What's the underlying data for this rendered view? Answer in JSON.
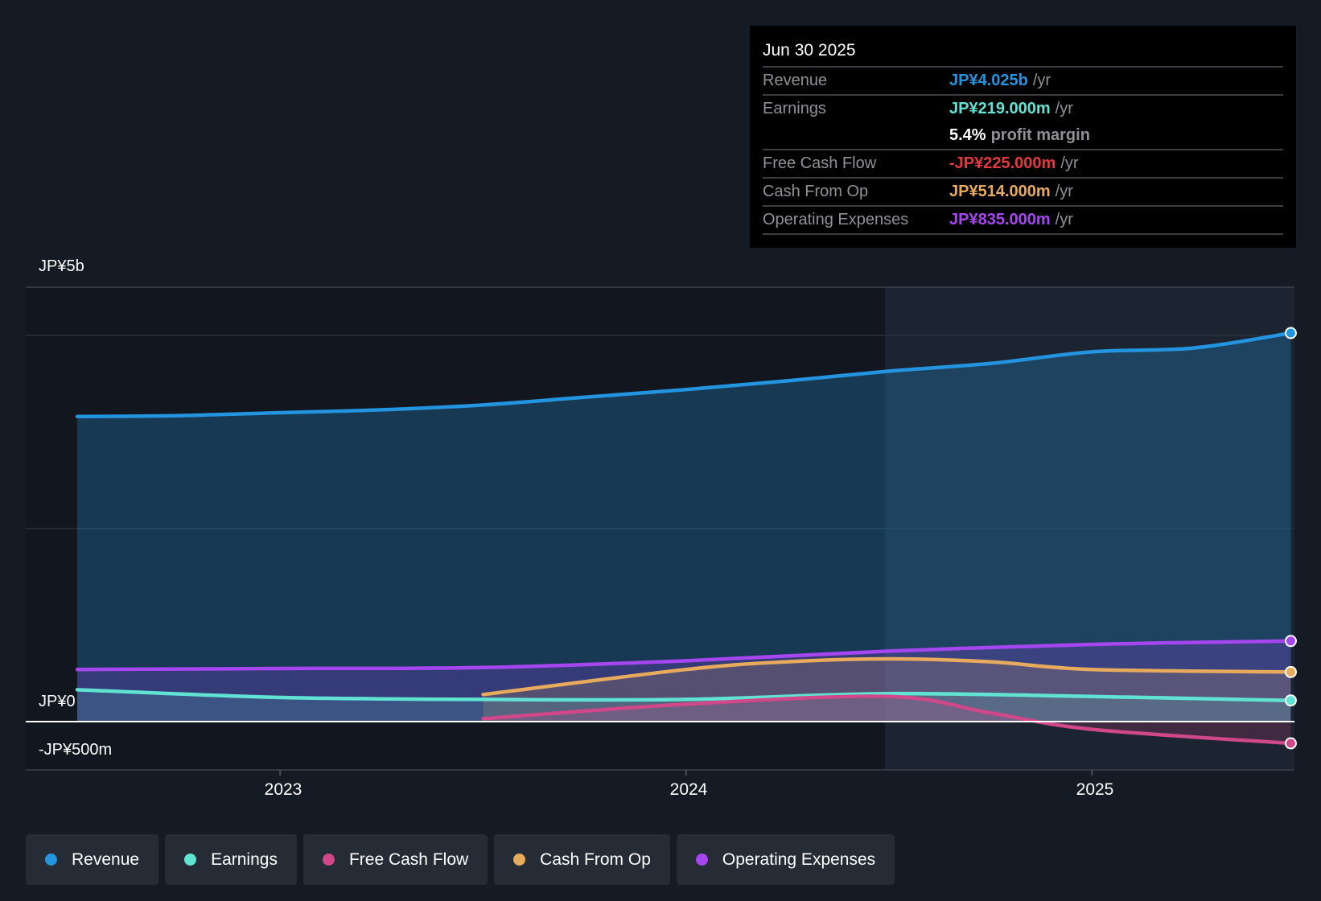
{
  "tooltip": {
    "date": "Jun 30 2025",
    "rows": [
      {
        "label": "Revenue",
        "value": "JP¥4.025b",
        "unit": "/yr",
        "color": "#2394df"
      },
      {
        "label": "Earnings",
        "value": "JP¥219.000m",
        "unit": "/yr",
        "color": "#61e3d3"
      },
      {
        "label": "",
        "value": "5.4%",
        "unit": "profit margin",
        "color": "#ffffff"
      },
      {
        "label": "Free Cash Flow",
        "value": "-JP¥225.000m",
        "unit": "/yr",
        "color": "#e5393f"
      },
      {
        "label": "Cash From Op",
        "value": "JP¥514.000m",
        "unit": "/yr",
        "color": "#e8aa5c"
      },
      {
        "label": "Operating Expenses",
        "value": "JP¥835.000m",
        "unit": "/yr",
        "color": "#a646f0"
      }
    ]
  },
  "legend": [
    {
      "label": "Revenue",
      "color": "#2394df"
    },
    {
      "label": "Earnings",
      "color": "#61e3d3"
    },
    {
      "label": "Free Cash Flow",
      "color": "#d0478a"
    },
    {
      "label": "Cash From Op",
      "color": "#e8aa5c"
    },
    {
      "label": "Operating Expenses",
      "color": "#a646f0"
    }
  ],
  "chart_data": {
    "type": "area",
    "ylim": [
      -0.5,
      4.5
    ],
    "xlim": [
      2022.37,
      2025.5
    ],
    "y_ticks": [
      {
        "value": 4.5,
        "label": "JP¥5b"
      },
      {
        "value": 0,
        "label": "JP¥0"
      },
      {
        "value": -0.5,
        "label": "-JP¥500m"
      }
    ],
    "x_ticks": [
      {
        "value": 2023,
        "label": "2023"
      },
      {
        "value": 2024,
        "label": "2024"
      },
      {
        "value": 2025,
        "label": "2025"
      }
    ],
    "gridlines": [
      4.5,
      4,
      2,
      -0.5
    ],
    "highlight_from": 2024.49,
    "unit": "JP¥ billions",
    "series": [
      {
        "name": "Revenue",
        "color": "#2394df",
        "fill": true,
        "x": [
          2022.5,
          2022.75,
          2023,
          2023.25,
          2023.5,
          2023.75,
          2024,
          2024.25,
          2024.5,
          2024.75,
          2025,
          2025.25,
          2025.49
        ],
        "y": [
          3.16,
          3.17,
          3.2,
          3.23,
          3.28,
          3.36,
          3.44,
          3.53,
          3.63,
          3.71,
          3.83,
          3.87,
          4.025
        ]
      },
      {
        "name": "Operating Expenses",
        "color": "#a646f0",
        "fill": true,
        "x": [
          2022.5,
          2023,
          2023.5,
          2024,
          2024.5,
          2025,
          2025.49
        ],
        "y": [
          0.54,
          0.55,
          0.56,
          0.63,
          0.73,
          0.8,
          0.835
        ]
      },
      {
        "name": "Cash From Op",
        "color": "#e8aa5c",
        "fill": true,
        "x": [
          2023.5,
          2024,
          2024.25,
          2024.5,
          2024.75,
          2025,
          2025.49
        ],
        "y": [
          0.28,
          0.54,
          0.62,
          0.65,
          0.62,
          0.54,
          0.514
        ]
      },
      {
        "name": "Earnings",
        "color": "#61e3d3",
        "fill": true,
        "x": [
          2022.5,
          2023,
          2023.5,
          2024,
          2024.5,
          2025,
          2025.49
        ],
        "y": [
          0.33,
          0.25,
          0.23,
          0.23,
          0.29,
          0.26,
          0.219
        ]
      },
      {
        "name": "Free Cash Flow",
        "color": "#d0478a",
        "fill": true,
        "x": [
          2023.5,
          2024,
          2024.5,
          2024.75,
          2025,
          2025.49
        ],
        "y": [
          0.03,
          0.18,
          0.26,
          0.09,
          -0.08,
          -0.225
        ]
      }
    ]
  }
}
